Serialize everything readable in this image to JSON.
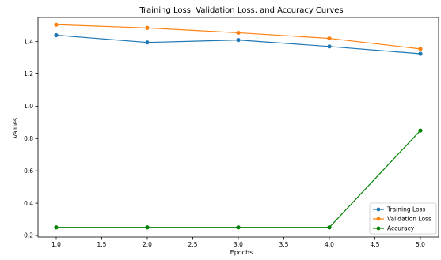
{
  "chart_data": {
    "type": "line",
    "title": "Training Loss, Validation Loss, and Accuracy Curves",
    "xlabel": "Epochs",
    "ylabel": "Values",
    "x": [
      1.0,
      2.0,
      3.0,
      4.0,
      5.0
    ],
    "xlim": [
      0.8,
      5.2
    ],
    "ylim": [
      0.19,
      1.55
    ],
    "xticks": [
      1.0,
      1.5,
      2.0,
      2.5,
      3.0,
      3.5,
      4.0,
      4.5,
      5.0
    ],
    "yticks": [
      0.2,
      0.4,
      0.6,
      0.8,
      1.0,
      1.2,
      1.4
    ],
    "xtick_labels": [
      "1.0",
      "1.5",
      "2.0",
      "2.5",
      "3.0",
      "3.5",
      "4.0",
      "4.5",
      "5.0"
    ],
    "ytick_labels": [
      "0.2",
      "0.4",
      "0.6",
      "0.8",
      "1.0",
      "1.2",
      "1.4"
    ],
    "grid": false,
    "legend_position": "bottom-right",
    "series": [
      {
        "name": "Training Loss",
        "color": "#1f77b4",
        "values": [
          1.44,
          1.395,
          1.41,
          1.37,
          1.325
        ]
      },
      {
        "name": "Validation Loss",
        "color": "#ff7f0e",
        "values": [
          1.505,
          1.485,
          1.455,
          1.42,
          1.355
        ]
      },
      {
        "name": "Accuracy",
        "color": "#008000",
        "values": [
          0.25,
          0.25,
          0.25,
          0.25,
          0.85
        ]
      }
    ]
  }
}
